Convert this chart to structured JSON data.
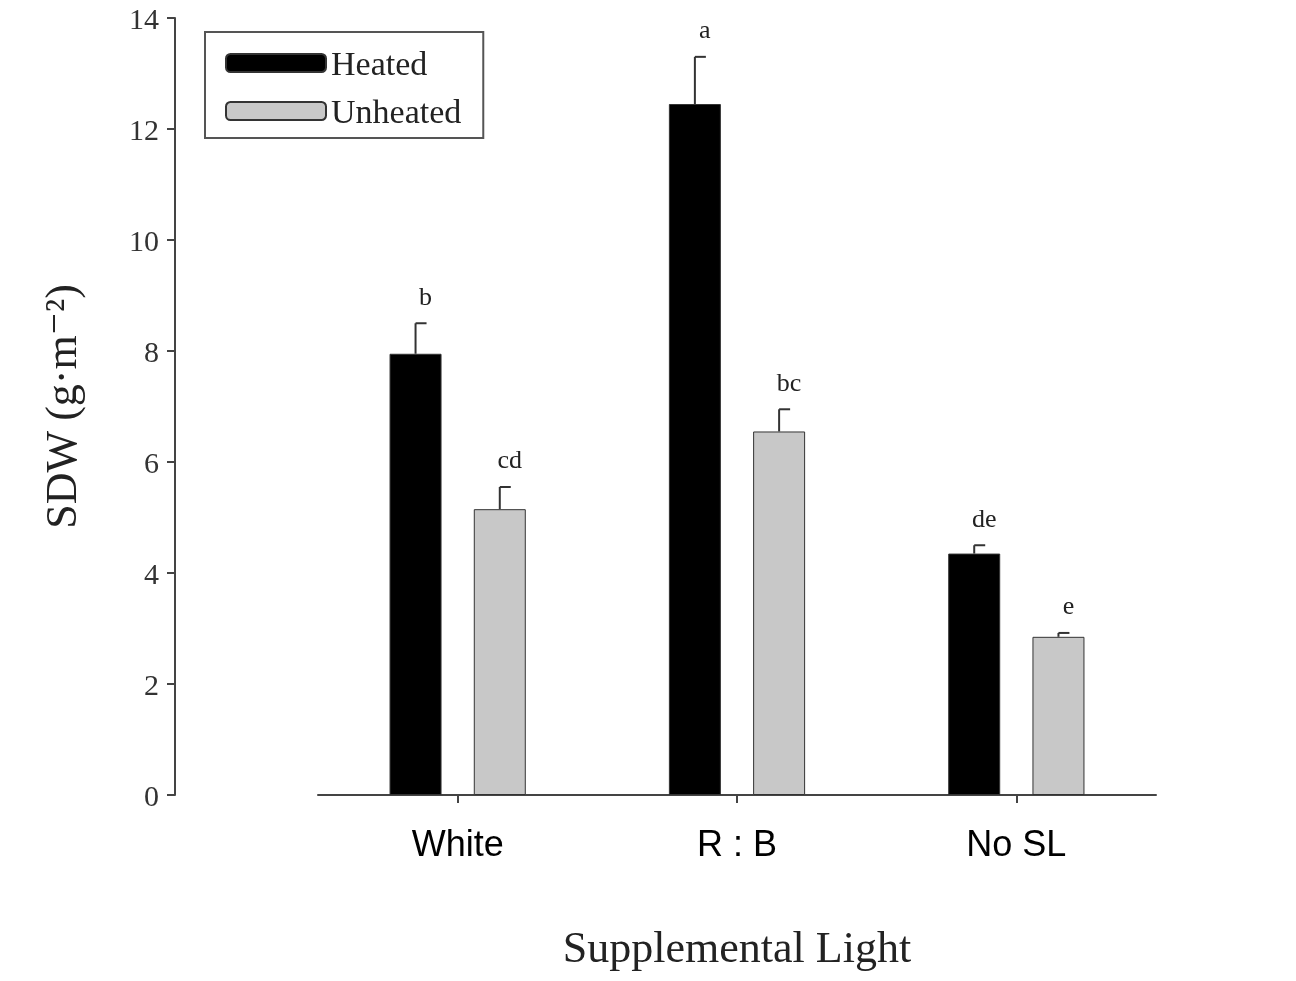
{
  "chart_data": {
    "type": "bar",
    "xlabel": "Supplemental Light",
    "ylabel": "SDW (g·m⁻²)",
    "categories": [
      "White",
      "R : B",
      "No SL"
    ],
    "series": [
      {
        "name": "Heated",
        "color": "#000000",
        "values": [
          7.95,
          12.45,
          4.35
        ],
        "errors": [
          [
            7.95,
            8.5
          ],
          [
            12.45,
            13.3
          ],
          [
            4.35,
            4.5
          ]
        ],
        "value_labels": [
          "b",
          "a",
          "de"
        ]
      },
      {
        "name": "Unheated",
        "color": "#c8c8c8",
        "values": [
          5.15,
          6.55,
          2.85
        ],
        "errors": [
          [
            5.15,
            5.55
          ],
          [
            6.55,
            6.95
          ],
          [
            2.85,
            2.92
          ]
        ],
        "value_labels": [
          "cd",
          "bc",
          "e"
        ]
      }
    ],
    "ylim": [
      0,
      14
    ],
    "yticks": [
      0,
      2,
      4,
      6,
      8,
      10,
      12,
      14
    ],
    "grid": false,
    "legend": "top left"
  }
}
